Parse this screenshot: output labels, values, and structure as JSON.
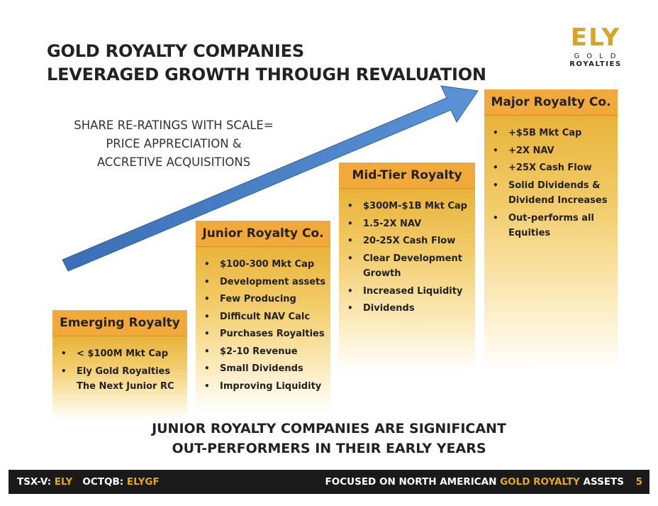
{
  "title": {
    "line1": "GOLD ROYALTY COMPANIES",
    "line2": "LEVERAGED GROWTH THROUGH REVALUATION"
  },
  "logo": {
    "mark": "ELY",
    "gold": "GOLD",
    "royalties": "ROYALTIES"
  },
  "tagline": {
    "line1": "SHARE RE-RATINGS WITH SCALE=",
    "line2": "PRICE APPRECIATION &",
    "line3": "ACCRETIVE ACQUISITIONS"
  },
  "tiers": [
    {
      "heading": "Emerging Royalty",
      "items": [
        "< $100M Mkt Cap",
        "Ely Gold Royalties The Next Junior RC"
      ]
    },
    {
      "heading": "Junior Royalty Co.",
      "items": [
        "$100-300 Mkt Cap",
        "Development assets",
        "Few Producing",
        "Difficult NAV Calc",
        "Purchases Royalties",
        "$2-10 Revenue",
        "Small Dividends",
        "Improving Liquidity"
      ]
    },
    {
      "heading": "Mid-Tier Royalty",
      "items": [
        "$300M-$1B Mkt Cap",
        "1.5-2X NAV",
        "20-25X Cash Flow",
        "Clear Development Growth",
        "Increased Liquidity",
        " Dividends"
      ]
    },
    {
      "heading": "Major Royalty Co.",
      "items": [
        "+$5B Mkt Cap",
        "+2X NAV",
        "+25X Cash Flow",
        "Solid Dividends & Dividend Increases",
        "Out-performs all Equities"
      ]
    }
  ],
  "conclusion": {
    "line1": "JUNIOR ROYALTY COMPANIES ARE SIGNIFICANT",
    "line2": "OUT-PERFORMERS IN THEIR EARLY YEARS"
  },
  "footer": {
    "tsx_label": "TSX-V:",
    "tsx_ticker": "ELY",
    "otc_label": "OCTQB:",
    "otc_ticker": "ELYGF",
    "focus_prefix": "FOCUSED ON NORTH AMERICAN",
    "focus_highlight": "GOLD ROYALTY",
    "focus_suffix": "ASSETS",
    "page_number": "5"
  },
  "colors": {
    "accent_gold": "#e8a817",
    "header_orange": "#f0a93a",
    "arrow_blue": "#4a7fc1"
  }
}
